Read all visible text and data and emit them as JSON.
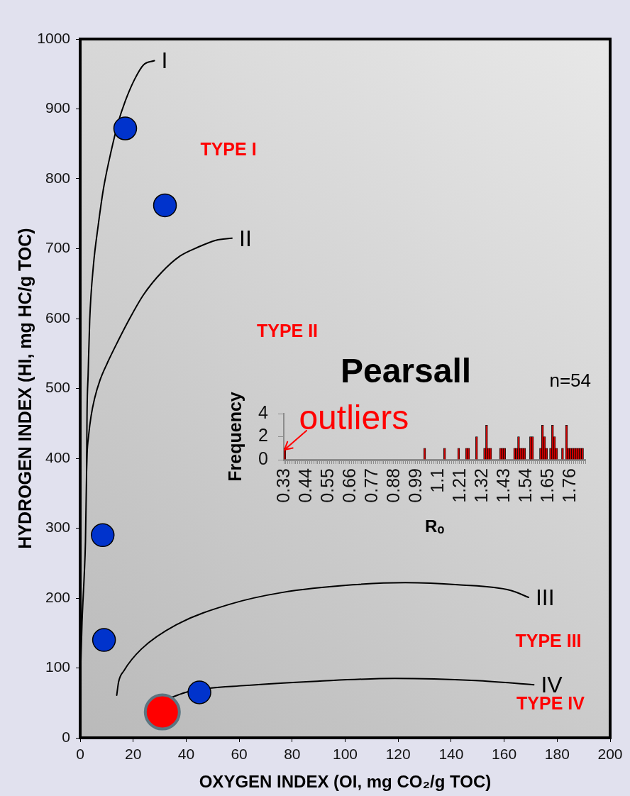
{
  "chart_data": [
    {
      "type": "scatter",
      "xlabel": "OXYGEN INDEX (OI, mg CO₂/g TOC)",
      "ylabel": "HYDROGEN INDEX (HI, mg HC/g TOC)",
      "xlim": [
        0,
        200
      ],
      "xticks": [
        0,
        20,
        40,
        60,
        80,
        100,
        120,
        140,
        160,
        180,
        200
      ],
      "ylim": [
        0,
        1000
      ],
      "yticks": [
        0,
        100,
        200,
        300,
        400,
        500,
        600,
        700,
        800,
        900,
        1000
      ],
      "marker": "circle",
      "series": [
        {
          "color": "#0033cc",
          "x": [
            17,
            32,
            8.5,
            9,
            45
          ],
          "values": [
            872,
            762,
            290,
            140,
            65
          ]
        },
        {
          "color": "#ff0000",
          "x": [
            31
          ],
          "values": [
            37
          ]
        },
        {
          "name": "I",
          "type": "line",
          "marker": "none",
          "color": "#000000",
          "x": [
            0.2,
            0.7,
            1.5,
            2.0,
            2.4,
            2.6,
            3.0,
            3.6,
            5.0,
            6.8,
            8.8,
            11.6,
            14.3,
            17.0,
            20.5,
            23.9,
            28.0
          ],
          "values": [
            100,
            165,
            230,
            281,
            373,
            467,
            519,
            598,
            676,
            733,
            786,
            838,
            880,
            911,
            942,
            963,
            969
          ]
        },
        {
          "name": "II",
          "type": "line",
          "marker": "none",
          "color": "#000000",
          "x": [
            2.4,
            2.6,
            3.2,
            4.1,
            5.4,
            7.5,
            10.2,
            14.3,
            18.4,
            23.9,
            30.7,
            37.5,
            44.4,
            51.2,
            57.3
          ],
          "values": [
            379,
            406,
            433,
            460,
            485,
            512,
            536,
            568,
            598,
            634,
            666,
            689,
            702,
            712,
            715
          ]
        },
        {
          "name": "III",
          "type": "line",
          "marker": "none",
          "color": "#000000",
          "x": [
            13.8,
            14.5,
            16.5,
            23.1,
            36.4,
            56.3,
            76.2,
            102.8,
            122.7,
            142.6,
            162.5,
            169.2
          ],
          "values": [
            61,
            80,
            96,
            127,
            162,
            191,
            208,
            219,
            222,
            219,
            211,
            201
          ]
        },
        {
          "name": "IV",
          "type": "line",
          "marker": "none",
          "color": "#000000",
          "x": [
            34.4,
            41.7,
            62.9,
            89.5,
            118.7,
            149.3,
            171.2
          ],
          "values": [
            58,
            67,
            75,
            81,
            85,
            82,
            76
          ]
        }
      ],
      "annotations": [
        "TYPE I",
        "TYPE II",
        "TYPE III",
        "TYPE IV"
      ]
    },
    {
      "type": "bar",
      "title": "Pearsall",
      "xlabel": "Rₒ",
      "ylabel": "Frequency",
      "categories": [
        "0.33",
        null,
        null,
        null,
        null,
        null,
        null,
        null,
        null,
        null,
        null,
        "0.44",
        null,
        null,
        null,
        null,
        null,
        null,
        null,
        null,
        null,
        null,
        "0.55",
        null,
        null,
        null,
        null,
        null,
        null,
        null,
        null,
        null,
        null,
        "0.66",
        null,
        null,
        null,
        null,
        null,
        null,
        null,
        null,
        null,
        null,
        "0.77",
        null,
        null,
        null,
        null,
        null,
        null,
        null,
        null,
        null,
        null,
        "0.88",
        null,
        null,
        null,
        null,
        null,
        null,
        null,
        null,
        null,
        null,
        "0.99",
        null,
        null,
        null,
        null,
        null,
        null,
        null,
        null,
        null,
        null,
        "1.1",
        null,
        null,
        null,
        null,
        null,
        null,
        null,
        null,
        null,
        null,
        "1.21",
        null,
        null,
        null,
        null,
        null,
        null,
        null,
        null,
        null,
        null,
        "1.32",
        null,
        null,
        null,
        null,
        null,
        null,
        null,
        null,
        null,
        null,
        "1.43",
        null,
        null,
        null,
        null,
        null,
        null,
        null,
        null,
        null,
        null,
        "1.54",
        null,
        null,
        null,
        null,
        null,
        null,
        null,
        null,
        null,
        null,
        "1.65",
        null,
        null,
        null,
        null,
        null,
        null,
        null,
        null,
        null,
        null,
        "1.76",
        null,
        null,
        null,
        null,
        null,
        null,
        null
      ],
      "values": [
        1,
        0,
        0,
        0,
        0,
        0,
        0,
        0,
        0,
        0,
        0,
        0,
        0,
        0,
        0,
        0,
        0,
        0,
        0,
        0,
        0,
        0,
        0,
        0,
        0,
        0,
        0,
        0,
        0,
        0,
        0,
        0,
        0,
        0,
        0,
        0,
        0,
        0,
        0,
        0,
        0,
        0,
        0,
        0,
        0,
        0,
        0,
        0,
        0,
        0,
        0,
        0,
        0,
        0,
        0,
        0,
        0,
        0,
        0,
        0,
        0,
        0,
        0,
        0,
        0,
        0,
        0,
        0,
        0,
        0,
        1,
        0,
        0,
        0,
        0,
        0,
        0,
        0,
        0,
        0,
        1,
        0,
        0,
        0,
        0,
        0,
        0,
        1,
        0,
        0,
        0,
        1,
        1,
        0,
        0,
        0,
        2,
        0,
        0,
        0,
        1,
        3,
        1,
        1,
        0,
        0,
        0,
        0,
        1,
        1,
        1,
        0,
        0,
        0,
        0,
        1,
        1,
        2,
        1,
        1,
        1,
        0,
        0,
        2,
        2,
        0,
        0,
        0,
        1,
        3,
        2,
        1,
        0,
        1,
        3,
        2,
        1,
        0,
        0,
        1,
        0,
        3,
        1,
        1,
        1,
        1,
        1,
        1,
        1,
        1,
        0
      ],
      "color": "#cc0000",
      "ylim": [
        0,
        4
      ],
      "yticks": [
        0,
        2,
        4
      ],
      "annotations": [
        {
          "text": "outliers",
          "x": "0.33",
          "y": 1
        },
        "n=54"
      ]
    }
  ]
}
